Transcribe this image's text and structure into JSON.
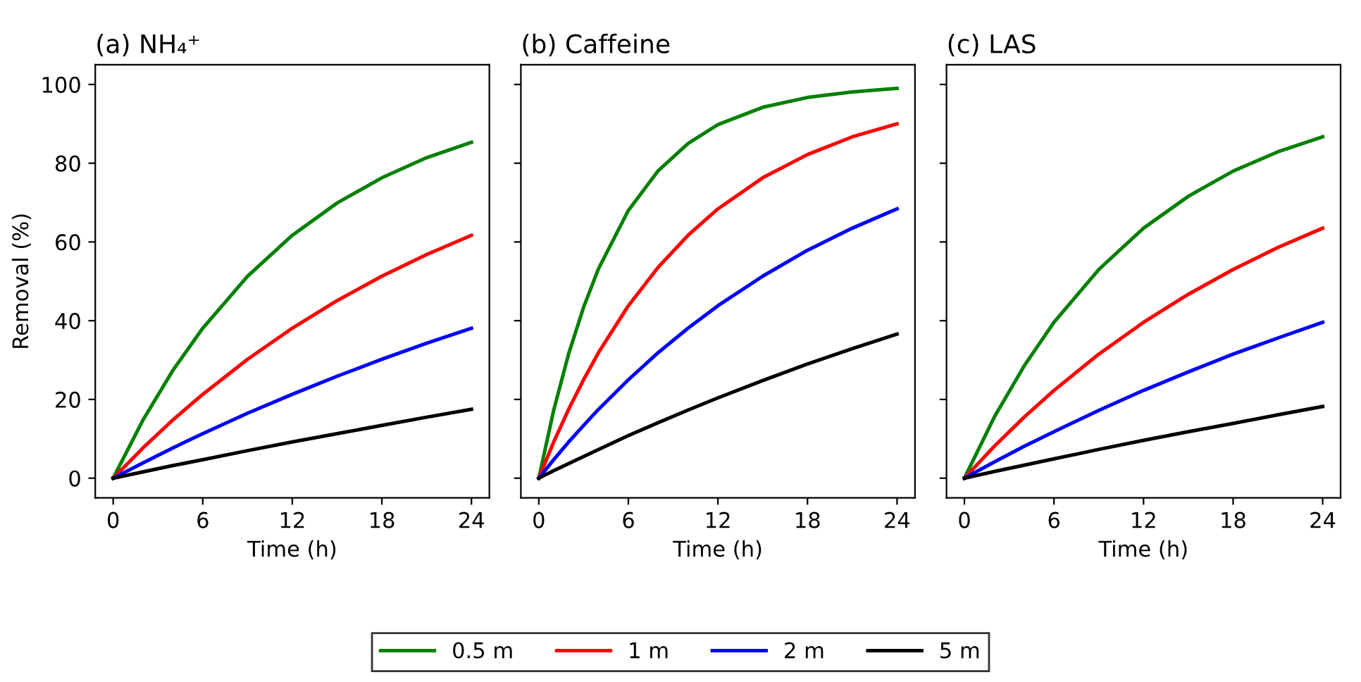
{
  "chart_data": [
    {
      "type": "line",
      "title": "(a) NH₄⁺",
      "xlabel": "Time (h)",
      "ylabel": "Removal (%)",
      "xlim": [
        -1.2,
        25.2
      ],
      "ylim": [
        -5,
        105
      ],
      "xticks": [
        0,
        6,
        12,
        18,
        24
      ],
      "yticks": [
        0,
        20,
        40,
        60,
        80,
        100
      ],
      "legend": "bottom",
      "grid": false,
      "x": [
        0,
        2,
        4,
        6,
        9,
        12,
        15,
        18,
        21,
        24
      ],
      "series": [
        {
          "name": "0.5 m",
          "color": "#008000",
          "values": [
            0,
            14.8,
            27.4,
            38.1,
            51.3,
            61.7,
            69.9,
            76.3,
            81.4,
            85.3
          ]
        },
        {
          "name": "1 m",
          "color": "#ff0000",
          "values": [
            0,
            7.7,
            14.8,
            21.3,
            30.2,
            38.1,
            45.1,
            51.3,
            56.8,
            61.7
          ]
        },
        {
          "name": "2 m",
          "color": "#0000ff",
          "values": [
            0,
            3.9,
            7.7,
            11.3,
            16.5,
            21.3,
            25.9,
            30.2,
            34.3,
            38.1
          ]
        },
        {
          "name": "5 m",
          "color": "#000000",
          "values": [
            0,
            1.6,
            3.2,
            4.7,
            7.0,
            9.2,
            11.3,
            13.4,
            15.5,
            17.5
          ]
        }
      ]
    },
    {
      "type": "line",
      "title": "(b) Caffeine",
      "xlabel": "Time (h)",
      "xlim": [
        -1.2,
        25.2
      ],
      "ylim": [
        -5,
        105
      ],
      "xticks": [
        0,
        6,
        12,
        18,
        24
      ],
      "yticks": [
        {
          "value": 0,
          "label": null
        },
        {
          "value": 20,
          "label": null
        },
        {
          "value": 40,
          "label": null
        },
        {
          "value": 60,
          "label": null
        },
        {
          "value": 80,
          "label": null
        },
        {
          "value": 100,
          "label": null
        }
      ],
      "tick_labels": "x",
      "grid": false,
      "x": [
        0,
        1,
        2,
        3,
        4,
        6,
        8,
        10,
        12,
        15,
        18,
        21,
        24
      ],
      "series": [
        {
          "color": "#008000",
          "values": [
            0,
            17.3,
            31.6,
            43.4,
            53.2,
            68.0,
            78.1,
            85.0,
            89.8,
            94.2,
            96.7,
            98.1,
            99.0
          ]
        },
        {
          "color": "#ff0000",
          "values": [
            0,
            9.2,
            17.5,
            25.0,
            31.9,
            43.8,
            53.6,
            61.7,
            68.4,
            76.3,
            82.2,
            86.7,
            90.0
          ]
        },
        {
          "color": "#0000ff",
          "values": [
            0,
            4.7,
            9.2,
            13.4,
            17.5,
            25.0,
            31.9,
            38.1,
            43.8,
            51.3,
            57.9,
            63.5,
            68.4
          ]
        },
        {
          "color": "#000000",
          "values": [
            0,
            1.9,
            3.7,
            5.5,
            7.3,
            10.8,
            14.1,
            17.3,
            20.4,
            24.8,
            29.0,
            32.9,
            36.6
          ]
        }
      ]
    },
    {
      "type": "line",
      "title": "(c) LAS",
      "xlabel": "Time (h)",
      "xlim": [
        -1.2,
        25.2
      ],
      "ylim": [
        -5,
        105
      ],
      "xticks": [
        0,
        6,
        12,
        18,
        24
      ],
      "yticks": [
        {
          "value": 0,
          "label": null
        },
        {
          "value": 20,
          "label": null
        },
        {
          "value": 40,
          "label": null
        },
        {
          "value": 60,
          "label": null
        },
        {
          "value": 80,
          "label": null
        },
        {
          "value": 100,
          "label": null
        }
      ],
      "tick_labels": "x",
      "grid": false,
      "x": [
        0,
        2,
        4,
        6,
        9,
        12,
        15,
        18,
        21,
        24
      ],
      "series": [
        {
          "color": "#008000",
          "values": [
            0,
            15.5,
            28.5,
            39.6,
            53.0,
            63.5,
            71.6,
            78.0,
            82.9,
            86.7
          ]
        },
        {
          "color": "#ff0000",
          "values": [
            0,
            8.1,
            15.5,
            22.3,
            31.5,
            39.6,
            46.7,
            53.0,
            58.6,
            63.5
          ]
        },
        {
          "color": "#0000ff",
          "values": [
            0,
            4.1,
            8.1,
            11.8,
            17.2,
            22.3,
            27.0,
            31.5,
            35.6,
            39.6
          ]
        },
        {
          "color": "#000000",
          "values": [
            0,
            1.7,
            3.3,
            4.9,
            7.3,
            9.6,
            11.8,
            13.9,
            16.1,
            18.2
          ]
        }
      ]
    }
  ]
}
